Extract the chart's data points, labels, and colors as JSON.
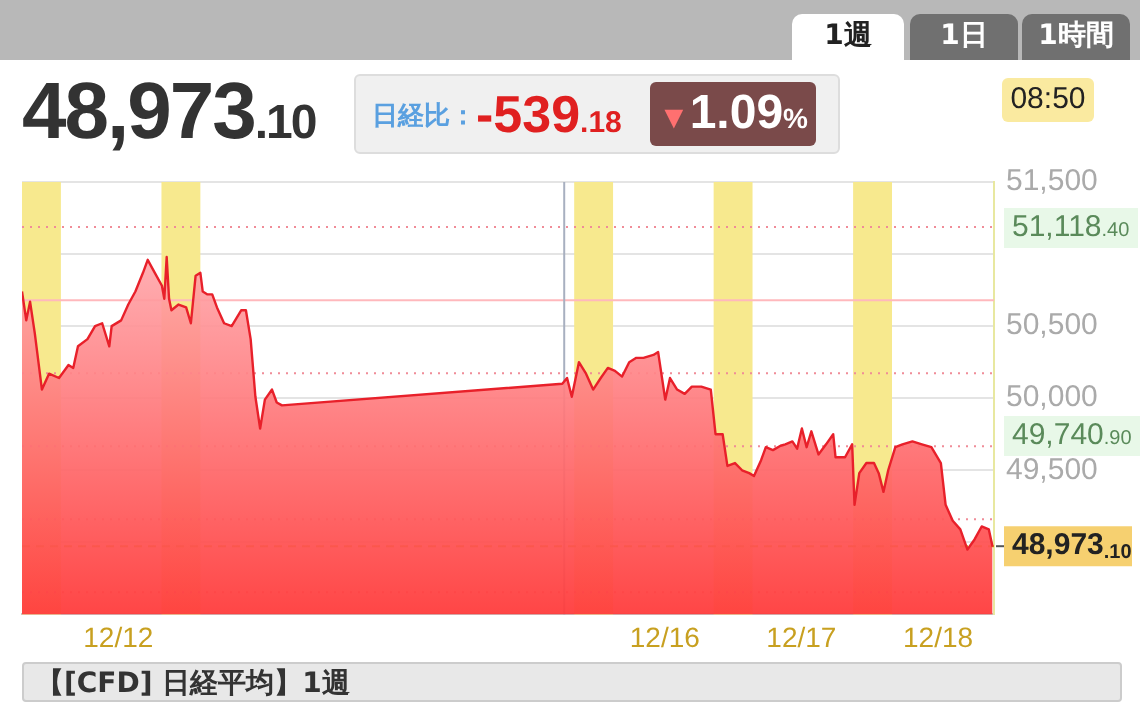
{
  "chart_data": {
    "type": "area",
    "title": "48,973.10",
    "subtitle": "【[CFD] 日経平均】1週",
    "annotations": [
      "日経比：",
      "-539.18",
      "▼1.09%",
      "08:50",
      "1週",
      "1日",
      "1時間",
      "51,118.40",
      "49,740.90"
    ],
    "x": [
      "--12-11T07:05",
      "--12-11T07:50",
      "--12-11T08:30",
      "--12-11T09:20",
      "--12-11T10:35",
      "--12-11T11:50",
      "--12-11T13:35",
      "--12-11T15:15",
      "--12-11T16:05",
      "--12-11T16:55",
      "--12-11T18:35",
      "--12-11T19:55",
      "--12-11T21:10",
      "--12-11T22:25",
      "--12-11T22:50",
      "--12-12T00:30",
      "--12-12T01:45",
      "--12-12T03:00",
      "--12-12T04:20",
      "--12-12T05:10",
      "--12-12T06:25",
      "--12-12T07:40",
      "--12-12T08:05",
      "--12-12T08:30",
      "--12-12T08:55",
      "--12-12T09:20",
      "--12-12T10:35",
      "--12-12T11:55",
      "--12-12T12:45",
      "--12-12T13:35",
      "--12-12T14:25",
      "--12-12T14:50",
      "--12-12T15:40",
      "--12-12T16:30",
      "--12-12T17:20",
      "--12-12T18:35",
      "--12-12T19:55",
      "--12-12T21:35",
      "--12-12T22:25",
      "--12-12T23:15",
      "--12-13T00:05",
      "--12-13T00:55",
      "--12-13T01:45",
      "--12-13T03:00",
      "--12-13T03:50",
      "--12-13T04:45",
      "--12-15T06:00",
      "--12-15T06:50",
      "--12-15T07:40",
      "--12-15T08:55",
      "--12-15T10:10",
      "--12-15T11:25",
      "--12-15T12:45",
      "--12-15T14:00",
      "--12-15T15:15",
      "--12-15T16:30",
      "--12-15T17:45",
      "--12-15T19:00",
      "--12-15T20:15",
      "--12-15T22:00",
      "--12-15T22:50",
      "--12-15T23:40",
      "--12-16T00:05",
      "--12-16T00:55",
      "--12-16T02:10",
      "--12-16T03:30",
      "--12-16T04:45",
      "--12-16T06:25",
      "--12-16T08:05",
      "--12-16T08:55",
      "--12-16T10:10",
      "--12-16T11:00",
      "--12-16T12:20",
      "--12-16T13:35",
      "--12-16T14:50",
      "--12-16T15:40",
      "--12-16T16:55",
      "--12-16T17:45",
      "--12-16T19:00",
      "--12-16T20:20",
      "--12-16T21:10",
      "--12-16T22:25",
      "--12-16T23:15",
      "--12-17T00:05",
      "--12-17T00:55",
      "--12-17T01:45",
      "--12-17T03:00",
      "--12-17T04:20",
      "--12-17T05:35",
      "--12-17T06:00",
      "--12-17T07:40",
      "--12-17T08:55",
      "--12-17T09:20",
      "--12-17T10:10",
      "--12-17T11:25",
      "--12-17T12:45",
      "--12-17T13:35",
      "--12-17T14:25",
      "--12-17T15:15",
      "--12-17T16:30",
      "--12-17T17:45",
      "--12-17T19:30",
      "--12-17T21:10",
      "--12-17T22:50",
      "--12-18T00:30",
      "--12-18T01:20",
      "--12-18T02:35",
      "--12-18T03:55",
      "--12-18T05:10",
      "--12-18T06:25",
      "--12-18T07:40",
      "--12-18T08:55",
      "--12-18T09:35"
    ],
    "series": [
      {
        "color": "#e8202a",
        "values": [
          50740,
          50540,
          50670,
          50450,
          50060,
          50170,
          50140,
          50230,
          50210,
          50360,
          50410,
          50500,
          50520,
          50360,
          50500,
          50540,
          50650,
          50740,
          50870,
          50960,
          50870,
          50780,
          50690,
          50980,
          50690,
          50610,
          50650,
          50630,
          50520,
          50850,
          50870,
          50740,
          50720,
          50720,
          50630,
          50520,
          50500,
          50610,
          50610,
          50410,
          50010,
          49790,
          49990,
          50060,
          49970,
          49950,
          50100,
          50140,
          50010,
          50250,
          50170,
          50060,
          50140,
          50210,
          50190,
          50150,
          50250,
          50280,
          50280,
          50300,
          50320,
          50100,
          49990,
          50140,
          50060,
          50030,
          50080,
          50080,
          50060,
          49750,
          49750,
          49530,
          49550,
          49500,
          49480,
          49460,
          49570,
          49660,
          49640,
          49670,
          49680,
          49700,
          49650,
          49790,
          49660,
          49770,
          49610,
          49680,
          49750,
          49590,
          49590,
          49680,
          49260,
          49480,
          49550,
          49550,
          49480,
          49350,
          49500,
          49660,
          49680,
          49700,
          49680,
          49660,
          49550,
          49260,
          49150,
          49090,
          48950,
          49020,
          49110,
          49090,
          48970
        ]
      }
    ],
    "xlim": [
      "--12-11T07:05",
      "--12-18T09:50"
    ],
    "xticks": [
      {
        "value": "--12-12",
        "label": "12/12"
      },
      {
        "value": "--12-16",
        "label": "12/16"
      },
      {
        "value": "--12-17",
        "label": "12/17"
      },
      {
        "value": "--12-18",
        "label": "12/18"
      }
    ],
    "ylim": [
      48500,
      51500
    ],
    "yticks": [
      {
        "value": 48500,
        "label": null
      },
      {
        "value": 49000,
        "label": null
      },
      {
        "value": 49500,
        "label": "49,500"
      },
      {
        "value": 50000,
        "label": "50,000"
      },
      {
        "value": 50500,
        "label": "50,500"
      },
      {
        "value": 51000,
        "label": null
      },
      {
        "value": 51500,
        "label": "51,500"
      }
    ],
    "grid": "y",
    "legend": false,
    "marker": "none",
    "line_style": "solid",
    "ref_lines": [
      {
        "axis": "y",
        "value": 50680,
        "color": "#ffb8bc"
      },
      {
        "axis": "y",
        "value": 51187,
        "color": "#f08c98",
        "line_style": "dotted"
      },
      {
        "axis": "y",
        "value": 50173,
        "color": "#f08c98",
        "line_style": "dotted"
      },
      {
        "axis": "y",
        "value": 49666,
        "color": "#f08c98",
        "line_style": "dotted"
      },
      {
        "axis": "y",
        "value": 49160,
        "color": "#f08c98",
        "line_style": "dotted"
      },
      {
        "axis": "y",
        "value": 48653,
        "color": "#f08c98",
        "line_style": "dotted"
      },
      {
        "axis": "y",
        "value": 48973.1,
        "label": "48,973.10",
        "color": "#c8b400",
        "line_style": "dashed"
      },
      {
        "axis": "x",
        "value": "--12-15T06:20",
        "color": "#a8b0c0"
      }
    ],
    "bands": [
      {
        "axis": "x",
        "from": "--12-11T07:05",
        "to": "--12-11T13:55",
        "color": "#f7e98e"
      },
      {
        "axis": "x",
        "from": "--12-12T07:35",
        "to": "--12-12T14:25",
        "color": "#f7e98e"
      },
      {
        "axis": "x",
        "from": "--12-15T08:05",
        "to": "--12-15T14:55",
        "color": "#f7e98e"
      },
      {
        "axis": "x",
        "from": "--12-16T08:35",
        "to": "--12-16T15:25",
        "color": "#f7e98e"
      },
      {
        "axis": "x",
        "from": "--12-17T09:05",
        "to": "--12-17T15:55",
        "color": "#f7e98e"
      }
    ]
  }
}
